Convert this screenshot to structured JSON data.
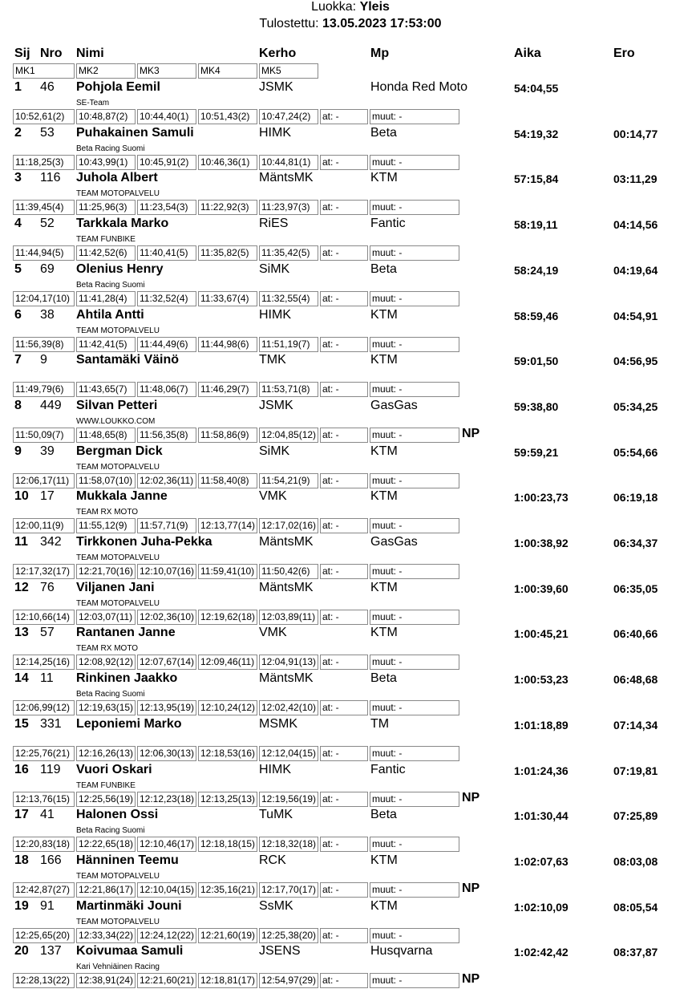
{
  "header": {
    "class_label": "Luokka:",
    "class_value": "Yleis",
    "printed_label": "Tulostettu:",
    "printed_value": "13.05.2023 17:53:00"
  },
  "columns": {
    "sij": "Sij",
    "nro": "Nro",
    "nimi": "Nimi",
    "kerho": "Kerho",
    "mp": "Mp",
    "aika": "Aika",
    "ero": "Ero",
    "laps": [
      "MK1",
      "MK2",
      "MK3",
      "MK4",
      "MK5"
    ]
  },
  "riders": [
    {
      "sij": "1",
      "nro": "46",
      "name": "Pohjola Eemil",
      "team": "SE-Team",
      "club": "JSMK",
      "bike": "Honda Red Moto",
      "time": "54:04,55",
      "gap": "",
      "laps": [
        "10:52,61(2)",
        "10:48,87(2)",
        "10:44,40(1)",
        "10:51,43(2)",
        "10:47,24(2)"
      ],
      "at": "at: -",
      "muut": "muut: -",
      "np": ""
    },
    {
      "sij": "2",
      "nro": "53",
      "name": "Puhakainen Samuli",
      "team": "Beta Racing Suomi",
      "club": "HIMK",
      "bike": "Beta",
      "time": "54:19,32",
      "gap": "00:14,77",
      "laps": [
        "11:18,25(3)",
        "10:43,99(1)",
        "10:45,91(2)",
        "10:46,36(1)",
        "10:44,81(1)"
      ],
      "at": "at: -",
      "muut": "muut: -",
      "np": ""
    },
    {
      "sij": "3",
      "nro": "116",
      "name": "Juhola Albert",
      "team": "TEAM MOTOPALVELU",
      "club": "MäntsMK",
      "bike": "KTM",
      "time": "57:15,84",
      "gap": "03:11,29",
      "laps": [
        "11:39,45(4)",
        "11:25,96(3)",
        "11:23,54(3)",
        "11:22,92(3)",
        "11:23,97(3)"
      ],
      "at": "at: -",
      "muut": "muut: -",
      "np": ""
    },
    {
      "sij": "4",
      "nro": "52",
      "name": "Tarkkala Marko",
      "team": "TEAM FUNBIKE",
      "club": "RiES",
      "bike": "Fantic",
      "time": "58:19,11",
      "gap": "04:14,56",
      "laps": [
        "11:44,94(5)",
        "11:42,52(6)",
        "11:40,41(5)",
        "11:35,82(5)",
        "11:35,42(5)"
      ],
      "at": "at: -",
      "muut": "muut: -",
      "np": ""
    },
    {
      "sij": "5",
      "nro": "69",
      "name": "Olenius Henry",
      "team": "Beta Racing Suomi",
      "club": "SiMK",
      "bike": "Beta",
      "time": "58:24,19",
      "gap": "04:19,64",
      "laps": [
        "12:04,17(10)",
        "11:41,28(4)",
        "11:32,52(4)",
        "11:33,67(4)",
        "11:32,55(4)"
      ],
      "at": "at: -",
      "muut": "muut: -",
      "np": ""
    },
    {
      "sij": "6",
      "nro": "38",
      "name": "Ahtila Antti",
      "team": "TEAM MOTOPALVELU",
      "club": "HIMK",
      "bike": "KTM",
      "time": "58:59,46",
      "gap": "04:54,91",
      "laps": [
        "11:56,39(8)",
        "11:42,41(5)",
        "11:44,49(6)",
        "11:44,98(6)",
        "11:51,19(7)"
      ],
      "at": "at: -",
      "muut": "muut: -",
      "np": ""
    },
    {
      "sij": "7",
      "nro": "9",
      "name": "Santamäki Väinö",
      "team": "",
      "club": "TMK",
      "bike": "KTM",
      "time": "59:01,50",
      "gap": "04:56,95",
      "laps": [
        "11:49,79(6)",
        "11:43,65(7)",
        "11:48,06(7)",
        "11:46,29(7)",
        "11:53,71(8)"
      ],
      "at": "at: -",
      "muut": "muut: -",
      "np": ""
    },
    {
      "sij": "8",
      "nro": "449",
      "name": "Silvan Petteri",
      "team": "WWW.LOUKKO.COM",
      "club": "JSMK",
      "bike": "GasGas",
      "time": "59:38,80",
      "gap": "05:34,25",
      "laps": [
        "11:50,09(7)",
        "11:48,65(8)",
        "11:56,35(8)",
        "11:58,86(9)",
        "12:04,85(12)"
      ],
      "at": "at: -",
      "muut": "muut: -",
      "np": "NP"
    },
    {
      "sij": "9",
      "nro": "39",
      "name": "Bergman Dick",
      "team": "TEAM MOTOPALVELU",
      "club": "SiMK",
      "bike": "KTM",
      "time": "59:59,21",
      "gap": "05:54,66",
      "laps": [
        "12:06,17(11)",
        "11:58,07(10)",
        "12:02,36(11)",
        "11:58,40(8)",
        "11:54,21(9)"
      ],
      "at": "at: -",
      "muut": "muut: -",
      "np": ""
    },
    {
      "sij": "10",
      "nro": "17",
      "name": "Mukkala Janne",
      "team": "TEAM RX MOTO",
      "club": "VMK",
      "bike": "KTM",
      "time": "1:00:23,73",
      "gap": "06:19,18",
      "laps": [
        "12:00,11(9)",
        "11:55,12(9)",
        "11:57,71(9)",
        "12:13,77(14)",
        "12:17,02(16)"
      ],
      "at": "at: -",
      "muut": "muut: -",
      "np": ""
    },
    {
      "sij": "11",
      "nro": "342",
      "name": "Tirkkonen Juha-Pekka",
      "team": "TEAM MOTOPALVELU",
      "club": "MäntsMK",
      "bike": "GasGas",
      "time": "1:00:38,92",
      "gap": "06:34,37",
      "laps": [
        "12:17,32(17)",
        "12:21,70(16)",
        "12:10,07(16)",
        "11:59,41(10)",
        "11:50,42(6)"
      ],
      "at": "at: -",
      "muut": "muut: -",
      "np": ""
    },
    {
      "sij": "12",
      "nro": "76",
      "name": "Viljanen Jani",
      "team": "TEAM MOTOPALVELU",
      "club": "MäntsMK",
      "bike": "KTM",
      "time": "1:00:39,60",
      "gap": "06:35,05",
      "laps": [
        "12:10,66(14)",
        "12:03,07(11)",
        "12:02,36(10)",
        "12:19,62(18)",
        "12:03,89(11)"
      ],
      "at": "at: -",
      "muut": "muut: -",
      "np": ""
    },
    {
      "sij": "13",
      "nro": "57",
      "name": "Rantanen Janne",
      "team": "TEAM RX MOTO",
      "club": "VMK",
      "bike": "KTM",
      "time": "1:00:45,21",
      "gap": "06:40,66",
      "laps": [
        "12:14,25(16)",
        "12:08,92(12)",
        "12:07,67(14)",
        "12:09,46(11)",
        "12:04,91(13)"
      ],
      "at": "at: -",
      "muut": "muut: -",
      "np": ""
    },
    {
      "sij": "14",
      "nro": "11",
      "name": "Rinkinen Jaakko",
      "team": "Beta Racing Suomi",
      "club": "MäntsMK",
      "bike": "Beta",
      "time": "1:00:53,23",
      "gap": "06:48,68",
      "laps": [
        "12:06,99(12)",
        "12:19,63(15)",
        "12:13,95(19)",
        "12:10,24(12)",
        "12:02,42(10)"
      ],
      "at": "at: -",
      "muut": "muut: -",
      "np": ""
    },
    {
      "sij": "15",
      "nro": "331",
      "name": "Leponiemi Marko",
      "team": "",
      "club": "MSMK",
      "bike": "TM",
      "time": "1:01:18,89",
      "gap": "07:14,34",
      "laps": [
        "12:25,76(21)",
        "12:16,26(13)",
        "12:06,30(13)",
        "12:18,53(16)",
        "12:12,04(15)"
      ],
      "at": "at: -",
      "muut": "muut: -",
      "np": ""
    },
    {
      "sij": "16",
      "nro": "119",
      "name": "Vuori Oskari",
      "team": "TEAM FUNBIKE",
      "club": "HIMK",
      "bike": "Fantic",
      "time": "1:01:24,36",
      "gap": "07:19,81",
      "laps": [
        "12:13,76(15)",
        "12:25,56(19)",
        "12:12,23(18)",
        "12:13,25(13)",
        "12:19,56(19)"
      ],
      "at": "at: -",
      "muut": "muut: -",
      "np": "NP"
    },
    {
      "sij": "17",
      "nro": "41",
      "name": "Halonen Ossi",
      "team": "Beta Racing Suomi",
      "club": "TuMK",
      "bike": "Beta",
      "time": "1:01:30,44",
      "gap": "07:25,89",
      "laps": [
        "12:20,83(18)",
        "12:22,65(18)",
        "12:10,46(17)",
        "12:18,18(15)",
        "12:18,32(18)"
      ],
      "at": "at: -",
      "muut": "muut: -",
      "np": ""
    },
    {
      "sij": "18",
      "nro": "166",
      "name": "Hänninen Teemu",
      "team": "TEAM MOTOPALVELU",
      "club": "RCK",
      "bike": "KTM",
      "time": "1:02:07,63",
      "gap": "08:03,08",
      "laps": [
        "12:42,87(27)",
        "12:21,86(17)",
        "12:10,04(15)",
        "12:35,16(21)",
        "12:17,70(17)"
      ],
      "at": "at: -",
      "muut": "muut: -",
      "np": "NP"
    },
    {
      "sij": "19",
      "nro": "91",
      "name": "Martinmäki Jouni",
      "team": "TEAM MOTOPALVELU",
      "club": "SsMK",
      "bike": "KTM",
      "time": "1:02:10,09",
      "gap": "08:05,54",
      "laps": [
        "12:25,65(20)",
        "12:33,34(22)",
        "12:24,12(22)",
        "12:21,60(19)",
        "12:25,38(20)"
      ],
      "at": "at: -",
      "muut": "muut: -",
      "np": ""
    },
    {
      "sij": "20",
      "nro": "137",
      "name": "Koivumaa Samuli",
      "team": "Kari Vehniäinen Racing",
      "club": "JSENS",
      "bike": "Husqvarna",
      "time": "1:02:42,42",
      "gap": "08:37,87",
      "laps": [
        "12:28,13(22)",
        "12:38,91(24)",
        "12:21,60(21)",
        "12:18,81(17)",
        "12:54,97(29)"
      ],
      "at": "at: -",
      "muut": "muut: -",
      "np": "NP"
    }
  ]
}
